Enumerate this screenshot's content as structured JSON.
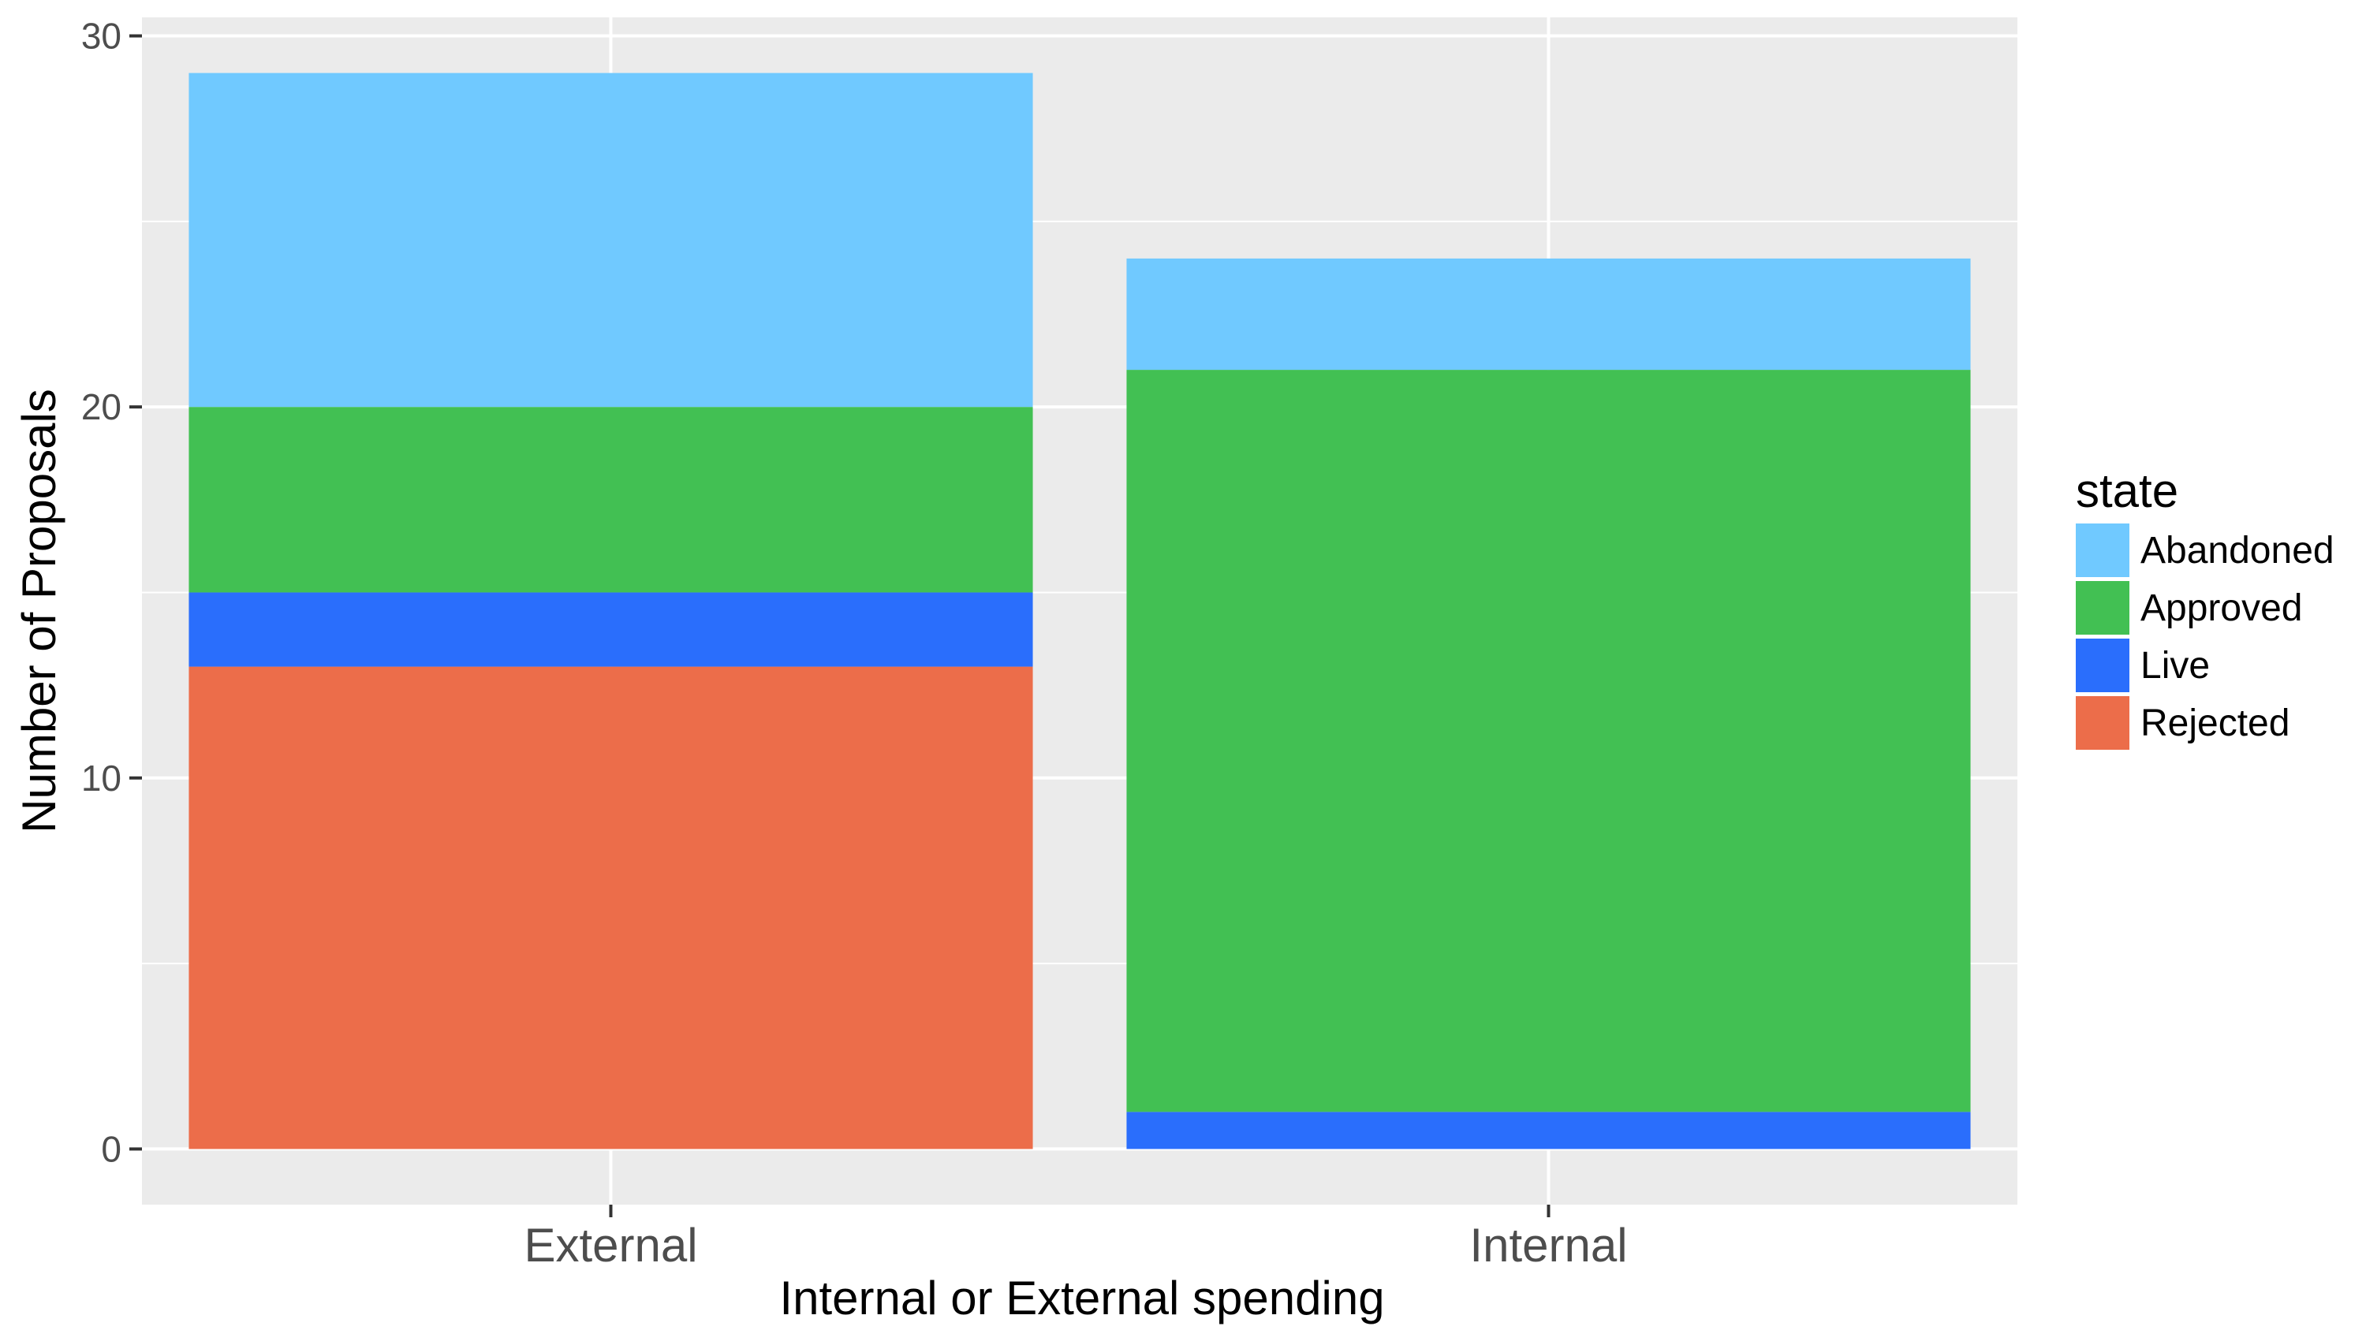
{
  "chart_data": {
    "type": "bar",
    "stacked": true,
    "categories": [
      "External",
      "Internal"
    ],
    "series": [
      {
        "name": "Rejected",
        "color": "#EC6D4A",
        "values": [
          13,
          0
        ]
      },
      {
        "name": "Live",
        "color": "#2A6EFC",
        "values": [
          2,
          1
        ]
      },
      {
        "name": "Approved",
        "color": "#42C053",
        "values": [
          5,
          20
        ]
      },
      {
        "name": "Abandoned",
        "color": "#70C9FF",
        "values": [
          9,
          3
        ]
      }
    ],
    "xlabel": "Internal or External spending",
    "ylabel": "Number of Proposals",
    "ylim": [
      -1.5,
      30.5
    ],
    "yticks": [
      0,
      10,
      20,
      30
    ],
    "grid": true,
    "legend": {
      "title": "state",
      "position": "right",
      "entries": [
        "Abandoned",
        "Approved",
        "Live",
        "Rejected"
      ]
    },
    "panel_color": "#EBEBEB",
    "grid_color": "#FFFFFF"
  }
}
